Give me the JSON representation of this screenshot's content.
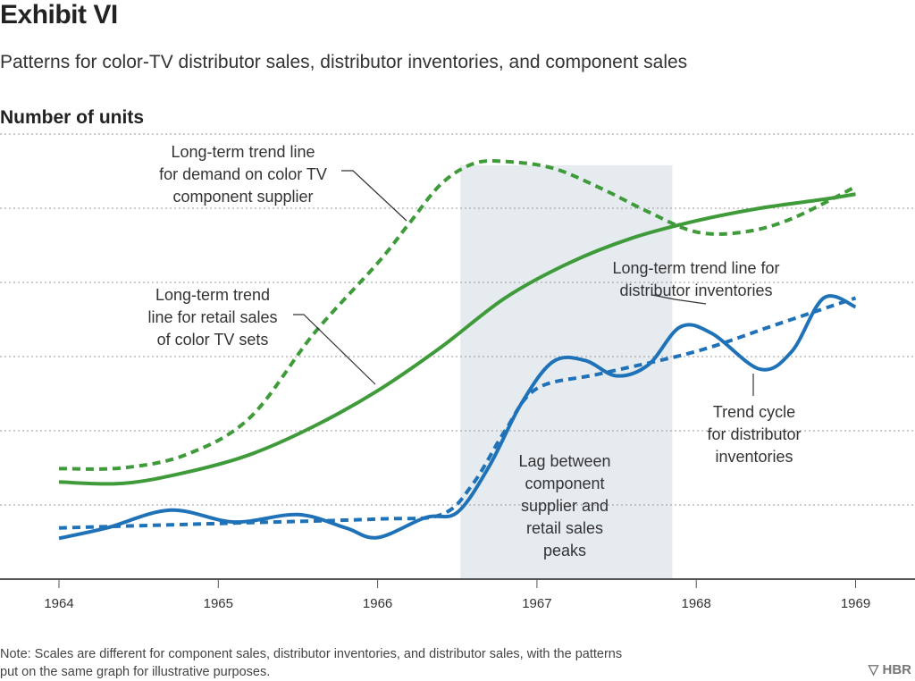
{
  "title": "Exhibit VI",
  "subtitle": "Patterns for color-TV distributor sales, distributor inventories, and component sales",
  "note": "Note: Scales are different for component sales, distributor inventories, and distributor sales, with the patterns put on the same graph for illustrative purposes.",
  "logo": "HBR",
  "chart_data": {
    "type": "line",
    "title": "Exhibit VI",
    "ylabel": "Number of units",
    "xlim": [
      1964,
      1969.3
    ],
    "ylim": [
      0,
      6
    ],
    "grid": true,
    "x_ticks": [
      "1964",
      "1965",
      "1966",
      "1967",
      "1968",
      "1969"
    ],
    "colors": {
      "green": "#3f9b3a",
      "blue": "#1f72b8",
      "shade": "#e6ebf0"
    },
    "shaded_region": {
      "x": [
        1966.52,
        1967.85
      ],
      "label": [
        "Lag between",
        "component",
        "supplier and",
        "retail sales",
        "peaks"
      ]
    },
    "series": [
      {
        "style": "solid",
        "color": "#3f9b3a",
        "label": [
          "Long-term trend",
          "line for retail sales",
          "of color TV sets"
        ],
        "x": [
          1964,
          1964.4,
          1964.8,
          1965.2,
          1965.6,
          1966,
          1966.4,
          1966.8,
          1967.2,
          1967.6,
          1968,
          1968.4,
          1968.8,
          1969
        ],
        "y": [
          1.31,
          1.29,
          1.44,
          1.68,
          2.06,
          2.54,
          3.13,
          3.79,
          4.26,
          4.6,
          4.83,
          5.0,
          5.12,
          5.19
        ]
      },
      {
        "style": "dashed",
        "color": "#3f9b3a",
        "label": [
          "Long-term trend line",
          "for demand on color TV",
          "component supplier"
        ],
        "x": [
          1964,
          1964.4,
          1964.8,
          1965.2,
          1965.6,
          1966,
          1966.2,
          1966.4,
          1966.6,
          1966.8,
          1967.1,
          1967.4,
          1967.7,
          1968,
          1968.3,
          1968.6,
          1969
        ],
        "y": [
          1.49,
          1.5,
          1.68,
          2.18,
          3.31,
          4.26,
          4.8,
          5.33,
          5.6,
          5.63,
          5.54,
          5.27,
          4.95,
          4.68,
          4.68,
          4.86,
          5.29
        ]
      },
      {
        "style": "solid",
        "color": "#1f72b8",
        "label": [
          "Trend cycle",
          "for distributor",
          "inventories"
        ],
        "x": [
          1964,
          1964.3,
          1964.7,
          1965.1,
          1965.5,
          1965.8,
          1966,
          1966.3,
          1966.5,
          1966.7,
          1966.9,
          1967.1,
          1967.3,
          1967.5,
          1967.7,
          1967.9,
          1968.1,
          1968.4,
          1968.6,
          1968.8,
          1969
        ],
        "y": [
          0.55,
          0.69,
          0.93,
          0.77,
          0.87,
          0.69,
          0.56,
          0.83,
          0.9,
          1.52,
          2.36,
          2.93,
          2.95,
          2.74,
          2.89,
          3.4,
          3.31,
          2.83,
          3.07,
          3.79,
          3.67
        ]
      },
      {
        "style": "dashed",
        "color": "#1f72b8",
        "label": [
          "Long-term trend line for",
          "distributor inventories"
        ],
        "x": [
          1964,
          1965,
          1966,
          1966.4,
          1966.6,
          1966.8,
          1967,
          1967.4,
          1968,
          1968.5,
          1969
        ],
        "y": [
          0.69,
          0.75,
          0.81,
          0.87,
          1.29,
          2.0,
          2.57,
          2.77,
          3.07,
          3.43,
          3.79
        ]
      }
    ]
  }
}
